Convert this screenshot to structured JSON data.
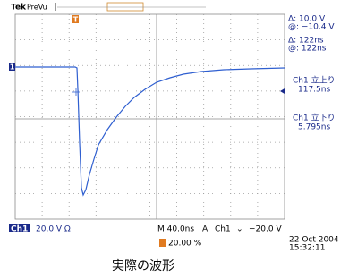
{
  "header": {
    "brand": "Tek",
    "mode": "PreVu"
  },
  "readouts": {
    "delta_v": "Δ:   10.0 V",
    "at_v": "@:  −10.4 V",
    "delta_t": "Δ:    122ns",
    "at_t": "@:    122ns",
    "rise_label": "Ch1 立上り",
    "rise_value": "117.5ns",
    "fall_label": "Ch1 立下り",
    "fall_value": "5.795ns"
  },
  "markers": {
    "channel": "1",
    "trigger": "T"
  },
  "status": {
    "channel": "Ch1",
    "scale": "20.0 V Ω",
    "timebase": "M 40.0ns",
    "acq": "A",
    "trig_channel": "Ch1",
    "trig_slope": "⌄",
    "trig_level": "−20.0 V",
    "trig_pos": "20.00 %"
  },
  "timestamp": {
    "date": "22 Oct  2004",
    "time": "15:32:11"
  },
  "caption": "実際の波形"
}
